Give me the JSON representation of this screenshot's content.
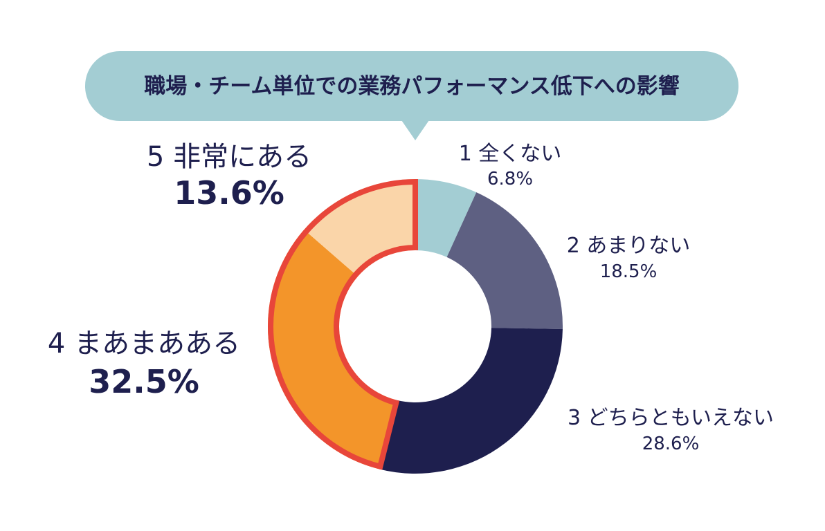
{
  "chart_data": {
    "type": "pie",
    "title": "職場・チーム単位での業務パフォーマンス低下への影響",
    "categories": [
      "1 全くない",
      "2 あまりない",
      "3 どちらともいえない",
      "4 まあまあある",
      "5 非常にある"
    ],
    "values": [
      6.8,
      18.5,
      28.6,
      32.5,
      13.6
    ],
    "value_labels": [
      "6.8%",
      "18.5%",
      "28.6%",
      "32.5%",
      "13.6%"
    ],
    "unit": "%",
    "colors": [
      "#a3cdd3",
      "#5e6082",
      "#1e1f4e",
      "#f3952a",
      "#fad5a9"
    ],
    "highlight": {
      "categories": [
        "4 まあまあある",
        "5 非常にある"
      ],
      "outline_color": "#e8463a"
    },
    "title_bubble_color": "#a3cdd3",
    "donut": true
  }
}
